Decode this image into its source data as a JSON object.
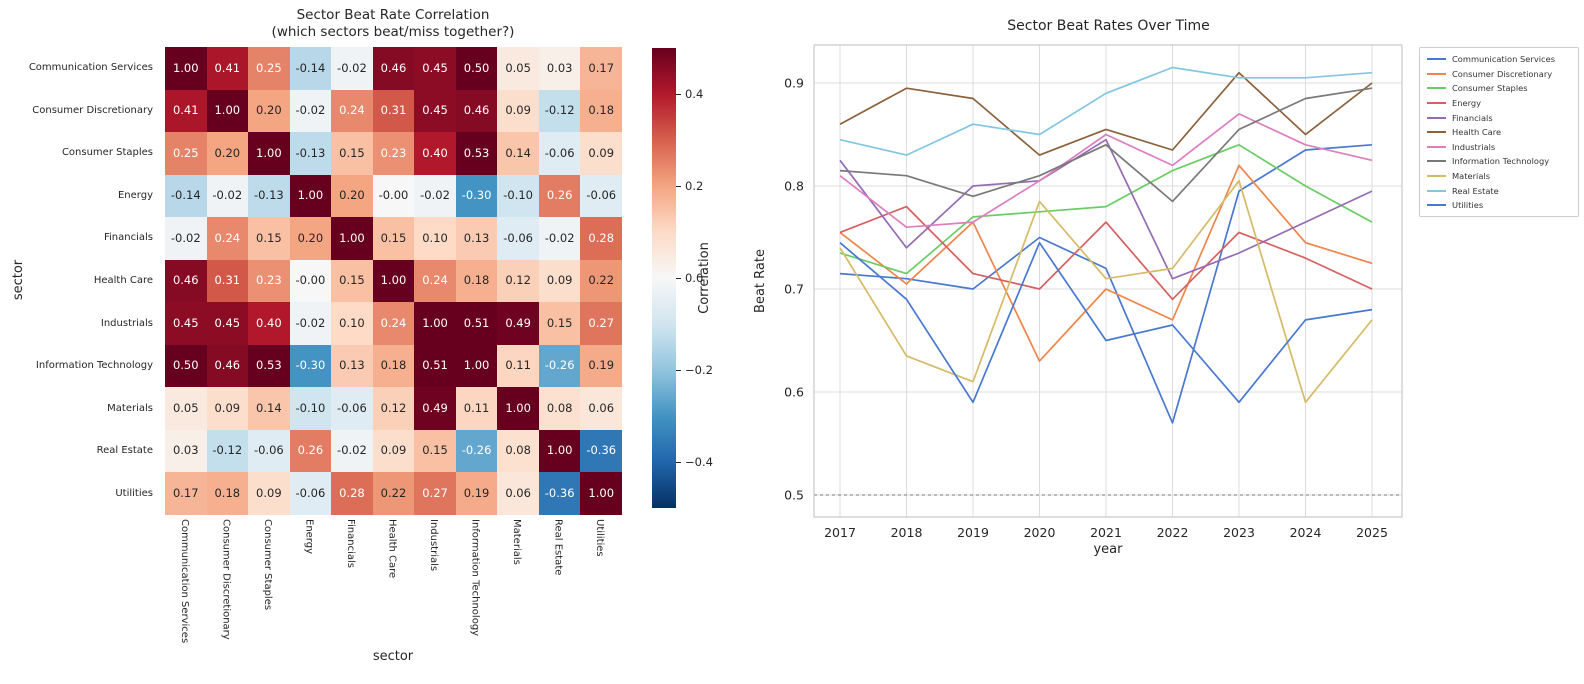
{
  "chart_data": [
    {
      "type": "heatmap",
      "title_line1": "Sector Beat Rate Correlation",
      "title_line2": "(which sectors beat/miss together?)",
      "xlabel": "sector",
      "ylabel": "sector",
      "categories": [
        "Communication Services",
        "Consumer Discretionary",
        "Consumer Staples",
        "Energy",
        "Financials",
        "Health Care",
        "Industrials",
        "Information Technology",
        "Materials",
        "Real Estate",
        "Utilities"
      ],
      "matrix": [
        [
          1.0,
          0.41,
          0.25,
          -0.14,
          -0.02,
          0.46,
          0.45,
          0.5,
          0.05,
          0.03,
          0.17
        ],
        [
          0.41,
          1.0,
          0.2,
          -0.02,
          0.24,
          0.31,
          0.45,
          0.46,
          0.09,
          -0.12,
          0.18
        ],
        [
          0.25,
          0.2,
          1.0,
          -0.13,
          0.15,
          0.23,
          0.4,
          0.53,
          0.14,
          -0.06,
          0.09
        ],
        [
          -0.14,
          -0.02,
          -0.13,
          1.0,
          0.2,
          -0.0,
          -0.02,
          -0.3,
          -0.1,
          0.26,
          -0.06
        ],
        [
          -0.02,
          0.24,
          0.15,
          0.2,
          1.0,
          0.15,
          0.1,
          0.13,
          -0.06,
          -0.02,
          0.28
        ],
        [
          0.46,
          0.31,
          0.23,
          -0.0,
          0.15,
          1.0,
          0.24,
          0.18,
          0.12,
          0.09,
          0.22
        ],
        [
          0.45,
          0.45,
          0.4,
          -0.02,
          0.1,
          0.24,
          1.0,
          0.51,
          0.49,
          0.15,
          0.27
        ],
        [
          0.5,
          0.46,
          0.53,
          -0.3,
          0.13,
          0.18,
          0.51,
          1.0,
          0.11,
          -0.26,
          0.19
        ],
        [
          0.05,
          0.09,
          0.14,
          -0.1,
          -0.06,
          0.12,
          0.49,
          0.11,
          1.0,
          0.08,
          0.06
        ],
        [
          0.03,
          -0.12,
          -0.06,
          0.26,
          -0.02,
          0.09,
          0.15,
          -0.26,
          0.08,
          1.0,
          -0.36
        ],
        [
          0.17,
          0.18,
          0.09,
          -0.06,
          0.28,
          0.22,
          0.27,
          0.19,
          0.06,
          -0.36,
          1.0
        ]
      ],
      "colorbar": {
        "label": "Correlation",
        "ticks": [
          {
            "v": 0.4,
            "label": "0.4"
          },
          {
            "v": 0.2,
            "label": "0.2"
          },
          {
            "v": 0.0,
            "label": "0.0"
          },
          {
            "v": -0.2,
            "label": "−0.2"
          },
          {
            "v": -0.4,
            "label": "−0.4"
          }
        ]
      },
      "colormap": "RdBu_r",
      "color_range": [
        -0.5,
        0.5
      ],
      "colormap_stops": [
        {
          "p": 0.0,
          "c": "#053061"
        },
        {
          "p": 0.1,
          "c": "#2166ac"
        },
        {
          "p": 0.2,
          "c": "#4393c3"
        },
        {
          "p": 0.3,
          "c": "#92c5de"
        },
        {
          "p": 0.4,
          "c": "#d1e5f0"
        },
        {
          "p": 0.5,
          "c": "#f7f7f7"
        },
        {
          "p": 0.6,
          "c": "#fddbc7"
        },
        {
          "p": 0.7,
          "c": "#f4a582"
        },
        {
          "p": 0.8,
          "c": "#d6604d"
        },
        {
          "p": 0.9,
          "c": "#b2182b"
        },
        {
          "p": 1.0,
          "c": "#67001f"
        }
      ]
    },
    {
      "type": "line",
      "title": "Sector Beat Rates Over Time",
      "xlabel": "year",
      "ylabel": "Beat Rate",
      "x": [
        2017,
        2018,
        2019,
        2020,
        2021,
        2022,
        2023,
        2024,
        2025
      ],
      "x_tick_labels": [
        "2017",
        "2018",
        "2019",
        "2020",
        "2021",
        "2022",
        "2023",
        "2024",
        "2025"
      ],
      "y_ticks": [
        {
          "v": 0.9,
          "label": "0.9"
        },
        {
          "v": 0.8,
          "label": "0.8"
        },
        {
          "v": 0.7,
          "label": "0.7"
        },
        {
          "v": 0.6,
          "label": "0.6"
        },
        {
          "v": 0.5,
          "label": "0.5"
        }
      ],
      "ylim": [
        0.48,
        0.94
      ],
      "grid": true,
      "legend_position": "right",
      "reference_line_y": 0.5,
      "series": [
        {
          "name": "Communication Services",
          "color": "#4878D0",
          "values": [
            0.715,
            0.71,
            0.7,
            0.75,
            0.72,
            0.57,
            0.795,
            0.835,
            0.84
          ]
        },
        {
          "name": "Consumer Discretionary",
          "color": "#EE854A",
          "values": [
            0.755,
            0.705,
            0.765,
            0.63,
            0.7,
            0.67,
            0.82,
            0.745,
            0.725
          ]
        },
        {
          "name": "Consumer Staples",
          "color": "#6ACC64",
          "values": [
            0.735,
            0.715,
            0.77,
            0.775,
            0.78,
            0.815,
            0.84,
            0.8,
            0.765
          ]
        },
        {
          "name": "Energy",
          "color": "#D65F5F",
          "values": [
            0.755,
            0.78,
            0.715,
            0.7,
            0.765,
            0.69,
            0.755,
            0.73,
            0.7
          ]
        },
        {
          "name": "Financials",
          "color": "#956CB4",
          "values": [
            0.825,
            0.74,
            0.8,
            0.805,
            0.845,
            0.71,
            0.735,
            0.765,
            0.795
          ]
        },
        {
          "name": "Health Care",
          "color": "#8C613C",
          "values": [
            0.86,
            0.895,
            0.885,
            0.83,
            0.855,
            0.835,
            0.91,
            0.85,
            0.9
          ]
        },
        {
          "name": "Industrials",
          "color": "#DC7EC0",
          "values": [
            0.81,
            0.76,
            0.765,
            0.805,
            0.85,
            0.82,
            0.87,
            0.84,
            0.825
          ]
        },
        {
          "name": "Information Technology",
          "color": "#797979",
          "values": [
            0.815,
            0.81,
            0.79,
            0.81,
            0.84,
            0.785,
            0.855,
            0.885,
            0.895
          ]
        },
        {
          "name": "Materials",
          "color": "#D5BB67",
          "values": [
            0.74,
            0.635,
            0.61,
            0.785,
            0.71,
            0.72,
            0.805,
            0.59,
            0.67
          ]
        },
        {
          "name": "Real Estate",
          "color": "#82C6E2",
          "values": [
            0.845,
            0.83,
            0.86,
            0.85,
            0.89,
            0.915,
            0.905,
            0.905,
            0.91
          ]
        },
        {
          "name": "Utilities",
          "color": "#4878D0",
          "values": [
            0.745,
            0.69,
            0.59,
            0.745,
            0.65,
            0.665,
            0.59,
            0.67,
            0.68
          ]
        }
      ]
    }
  ]
}
